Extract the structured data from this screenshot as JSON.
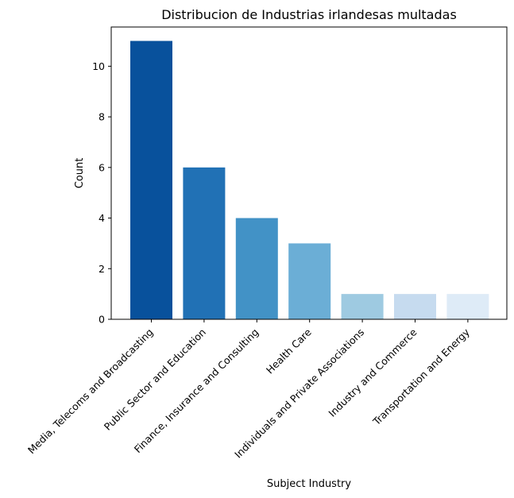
{
  "chart_data": {
    "type": "bar",
    "title": "Distribucion de Industrias irlandesas multadas",
    "xlabel": "Subject Industry",
    "ylabel": "Count",
    "categories": [
      "Media, Telecoms and Broadcasting",
      "Public Sector and Education",
      "Finance, Insurance and Consulting",
      "Health Care",
      "Individuals and Private Associations",
      "Industry and Commerce",
      "Transportation and Energy"
    ],
    "values": [
      11,
      6,
      4,
      3,
      1,
      1,
      1
    ],
    "colors": [
      "#08519c",
      "#2171b5",
      "#4292c6",
      "#6baed6",
      "#9ecae1",
      "#c6dbef",
      "#deebf7"
    ],
    "ylim": [
      0,
      11.55
    ],
    "yticks": [
      0,
      2,
      4,
      6,
      8,
      10
    ],
    "grid": false,
    "legend": "none"
  }
}
